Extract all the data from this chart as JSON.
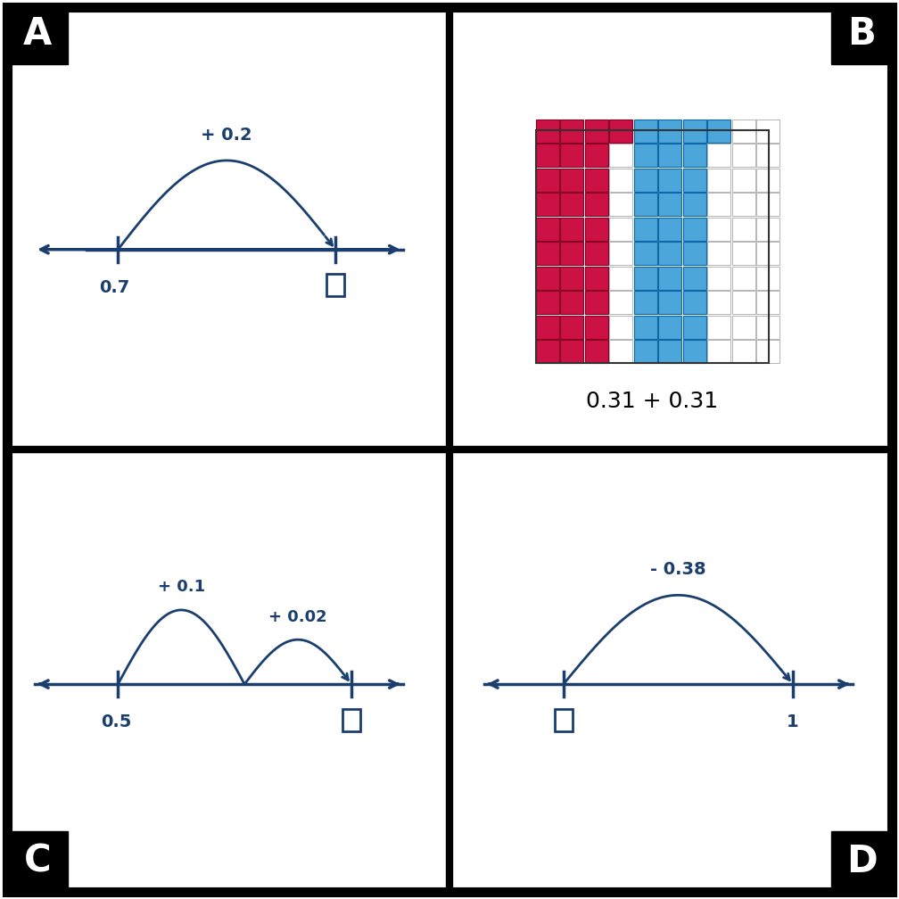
{
  "blue_color": "#1a3f6f",
  "red_color": "#cc1144",
  "sky_blue": "#4da6d9",
  "label_A": "A",
  "label_B": "B",
  "label_C": "C",
  "label_D": "D",
  "panel_A": {
    "label_jump": "+ 0.2",
    "label_start": "0.7"
  },
  "panel_B": {
    "red_count": 31,
    "blue_count": 31,
    "expression": "0.31 + 0.31",
    "grid_cols": 10,
    "grid_rows": 10
  },
  "panel_C": {
    "label_jump1": "+ 0.1",
    "label_jump2": "+ 0.02",
    "label_start": "0.5"
  },
  "panel_D": {
    "label_jump": "- 0.38",
    "label_start": "1"
  }
}
